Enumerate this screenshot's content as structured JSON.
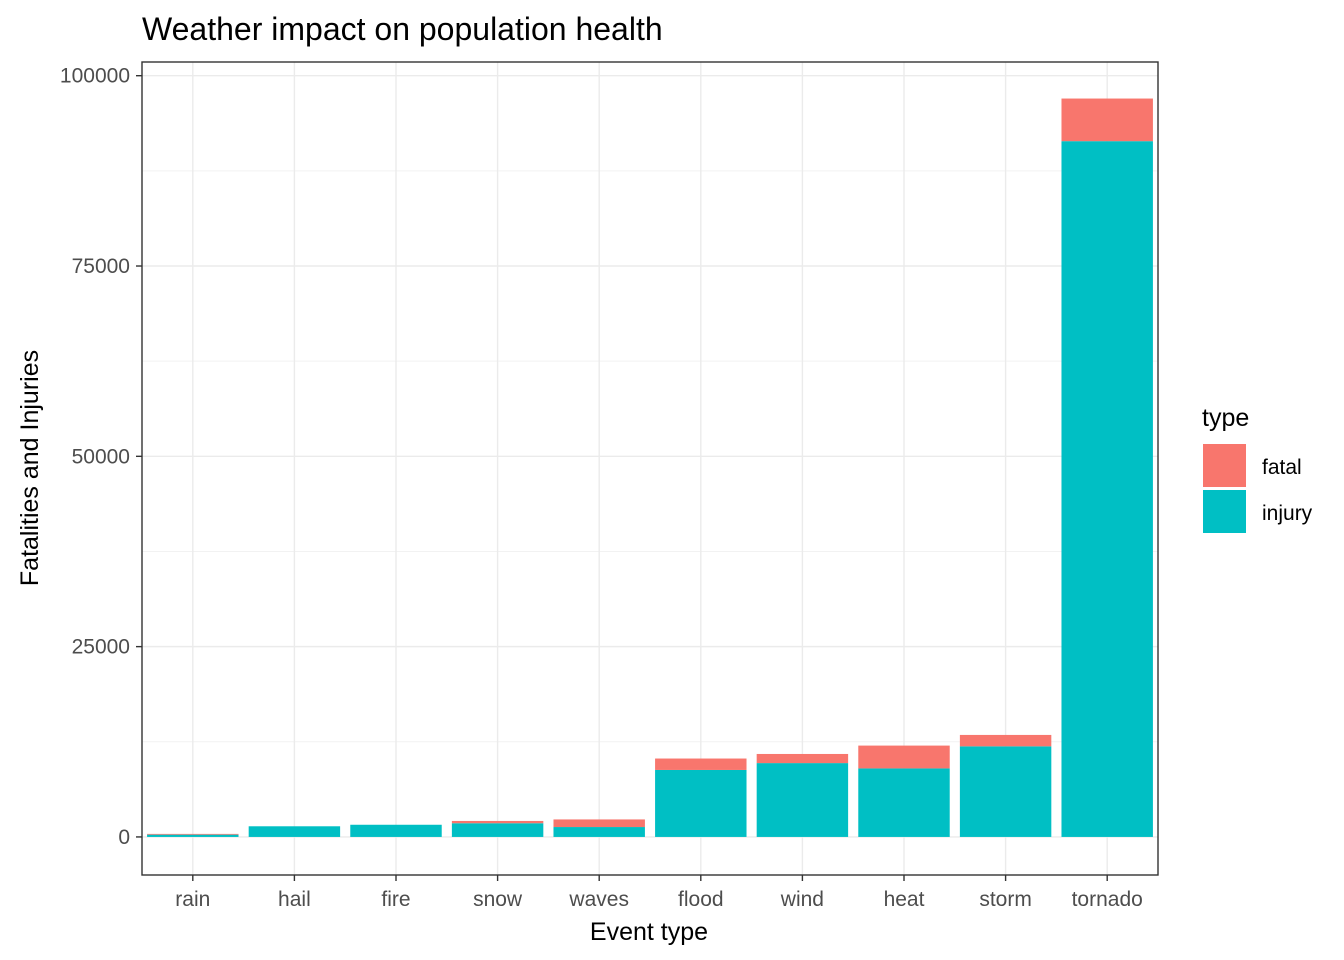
{
  "chart_data": {
    "type": "bar",
    "stacked": true,
    "title": "Weather impact on population health",
    "xlabel": "Event type",
    "ylabel": "Fatalities and Injuries",
    "categories": [
      "rain",
      "hail",
      "fire",
      "snow",
      "waves",
      "flood",
      "wind",
      "heat",
      "storm",
      "tornado"
    ],
    "series": [
      {
        "name": "injury",
        "color": "#00BFC4",
        "values": [
          300,
          1400,
          1600,
          1800,
          1300,
          8800,
          9700,
          9000,
          11900,
          91400
        ]
      },
      {
        "name": "fatal",
        "color": "#F8766D",
        "values": [
          100,
          0,
          0,
          300,
          1000,
          1500,
          1200,
          3000,
          1500,
          5600
        ]
      }
    ],
    "stack_order_bottom_to_top": [
      "injury",
      "fatal"
    ],
    "yticks": [
      0,
      25000,
      50000,
      75000,
      100000
    ],
    "ylim": [
      -5000,
      101800
    ],
    "grid": true,
    "theme": "bw",
    "legend": {
      "title": "type",
      "position": "right",
      "items": [
        {
          "label": "fatal",
          "color": "#F8766D"
        },
        {
          "label": "injury",
          "color": "#00BFC4"
        }
      ]
    }
  }
}
